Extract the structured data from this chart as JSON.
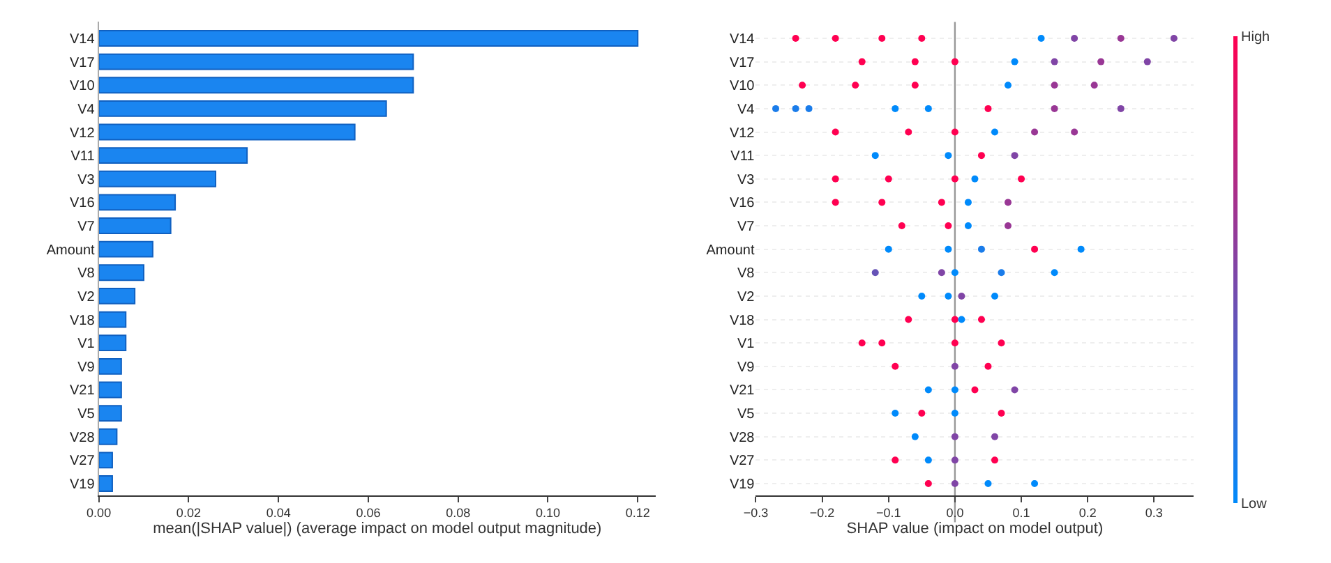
{
  "chart_data": [
    {
      "type": "bar",
      "orientation": "horizontal",
      "xlabel": "mean(|SHAP value|) (average impact on model output magnitude)",
      "categories": [
        "V14",
        "V17",
        "V10",
        "V4",
        "V12",
        "V11",
        "V3",
        "V16",
        "V7",
        "Amount",
        "V8",
        "V2",
        "V18",
        "V1",
        "V9",
        "V21",
        "V5",
        "V28",
        "V27",
        "V19"
      ],
      "values": [
        0.12,
        0.07,
        0.07,
        0.064,
        0.057,
        0.033,
        0.026,
        0.017,
        0.016,
        0.012,
        0.01,
        0.008,
        0.006,
        0.006,
        0.005,
        0.005,
        0.005,
        0.004,
        0.003,
        0.003
      ],
      "color": "#1a85f0",
      "xlim": [
        0,
        0.124
      ],
      "xticks": [
        {
          "value": 0,
          "label": "0.00"
        },
        {
          "value": 0.02,
          "label": "0.02"
        },
        {
          "value": 0.04,
          "label": "0.04"
        },
        {
          "value": 0.06,
          "label": "0.06"
        },
        {
          "value": 0.08,
          "label": "0.08"
        },
        {
          "value": 0.1,
          "label": "0.10"
        },
        {
          "value": 0.12,
          "label": "0.12"
        }
      ]
    },
    {
      "type": "scatter",
      "orientation": "horizontal",
      "xlabel": "SHAP value (impact on model output)",
      "categories": [
        "V14",
        "V17",
        "V10",
        "V4",
        "V12",
        "V11",
        "V3",
        "V16",
        "V7",
        "Amount",
        "V8",
        "V2",
        "V18",
        "V1",
        "V9",
        "V21",
        "V5",
        "V28",
        "V27",
        "V19"
      ],
      "series": [
        {
          "x": [
            "V14",
            "V14",
            "V14",
            "V14",
            "V14",
            "V14",
            "V14",
            "V14"
          ],
          "values": [
            -0.24,
            -0.18,
            -0.11,
            -0.05,
            0.13,
            0.18,
            0.25,
            0.33
          ],
          "colors": [
            "#ff0051",
            "#ff0051",
            "#ff0051",
            "#ff0051",
            "#008afb",
            "#8045a6",
            "#993795",
            "#8045a6"
          ]
        },
        {
          "x": [
            "V17",
            "V17",
            "V17",
            "V17",
            "V17",
            "V17",
            "V17"
          ],
          "values": [
            -0.14,
            -0.06,
            0.0,
            0.09,
            0.15,
            0.22,
            0.29
          ],
          "colors": [
            "#ff0051",
            "#ff0051",
            "#ff0051",
            "#008afb",
            "#8045a6",
            "#993795",
            "#8045a6"
          ]
        },
        {
          "x": [
            "V10",
            "V10",
            "V10",
            "V10",
            "V10",
            "V10"
          ],
          "values": [
            -0.23,
            -0.15,
            -0.06,
            0.08,
            0.15,
            0.21
          ],
          "colors": [
            "#ff0051",
            "#ff0051",
            "#ff0051",
            "#008afb",
            "#993795",
            "#993795"
          ]
        },
        {
          "x": [
            "V4",
            "V4",
            "V4",
            "V4",
            "V4",
            "V4",
            "V4",
            "V4"
          ],
          "values": [
            -0.27,
            -0.24,
            -0.22,
            -0.09,
            -0.04,
            0.05,
            0.15,
            0.25
          ],
          "colors": [
            "#1a7cea",
            "#1a7cea",
            "#1a7cea",
            "#008afb",
            "#008afb",
            "#ff0051",
            "#993795",
            "#8045a6"
          ]
        },
        {
          "x": [
            "V12",
            "V12",
            "V12",
            "V12",
            "V12",
            "V12"
          ],
          "values": [
            -0.18,
            -0.07,
            0.0,
            0.06,
            0.12,
            0.18
          ],
          "colors": [
            "#ff0051",
            "#ff0051",
            "#ff0051",
            "#008afb",
            "#993795",
            "#993795"
          ]
        },
        {
          "x": [
            "V11",
            "V11",
            "V11",
            "V11"
          ],
          "values": [
            -0.12,
            -0.01,
            0.04,
            0.09
          ],
          "colors": [
            "#008afb",
            "#008afb",
            "#ff0051",
            "#8045a6"
          ]
        },
        {
          "x": [
            "V3",
            "V3",
            "V3",
            "V3",
            "V3"
          ],
          "values": [
            -0.18,
            -0.1,
            0.0,
            0.03,
            0.1
          ],
          "colors": [
            "#ff0051",
            "#ff0051",
            "#ff0051",
            "#008afb",
            "#ff0051"
          ]
        },
        {
          "x": [
            "V16",
            "V16",
            "V16",
            "V16",
            "V16"
          ],
          "values": [
            -0.18,
            -0.11,
            -0.02,
            0.02,
            0.08
          ],
          "colors": [
            "#ff0051",
            "#ff0051",
            "#ff0051",
            "#008afb",
            "#993795"
          ]
        },
        {
          "x": [
            "V7",
            "V7",
            "V7",
            "V7"
          ],
          "values": [
            -0.08,
            -0.01,
            0.02,
            0.08
          ],
          "colors": [
            "#ff0051",
            "#ff0051",
            "#008afb",
            "#993795"
          ]
        },
        {
          "x": [
            "Amount",
            "Amount",
            "Amount",
            "Amount",
            "Amount"
          ],
          "values": [
            -0.1,
            -0.01,
            0.04,
            0.12,
            0.19
          ],
          "colors": [
            "#008afb",
            "#008afb",
            "#1a7cea",
            "#ff0051",
            "#008afb"
          ]
        },
        {
          "x": [
            "V8",
            "V8",
            "V8",
            "V8",
            "V8"
          ],
          "values": [
            -0.12,
            -0.02,
            0.0,
            0.07,
            0.15
          ],
          "colors": [
            "#6653b7",
            "#8045a6",
            "#008afb",
            "#1a7cea",
            "#008afb"
          ]
        },
        {
          "x": [
            "V2",
            "V2",
            "V2",
            "V2"
          ],
          "values": [
            -0.05,
            -0.01,
            0.01,
            0.06
          ],
          "colors": [
            "#008afb",
            "#008afb",
            "#8045a6",
            "#008afb"
          ]
        },
        {
          "x": [
            "V18",
            "V18",
            "V18",
            "V18"
          ],
          "values": [
            -0.07,
            0.0,
            0.01,
            0.04
          ],
          "colors": [
            "#ff0051",
            "#ff0051",
            "#008afb",
            "#ff0051"
          ]
        },
        {
          "x": [
            "V1",
            "V1",
            "V1",
            "V1"
          ],
          "values": [
            -0.14,
            -0.11,
            0.0,
            0.07
          ],
          "color": "#ff0051"
        },
        {
          "x": [
            "V9",
            "V9",
            "V9"
          ],
          "values": [
            -0.09,
            0.0,
            0.05
          ],
          "colors": [
            "#ff0051",
            "#8045a6",
            "#ff0051"
          ]
        },
        {
          "x": [
            "V21",
            "V21",
            "V21",
            "V21"
          ],
          "values": [
            -0.04,
            0.0,
            0.03,
            0.09
          ],
          "colors": [
            "#008afb",
            "#008afb",
            "#ff0051",
            "#8045a6"
          ]
        },
        {
          "x": [
            "V5",
            "V5",
            "V5",
            "V5"
          ],
          "values": [
            -0.09,
            -0.05,
            0.0,
            0.07
          ],
          "colors": [
            "#008afb",
            "#ff0051",
            "#008afb",
            "#ff0051"
          ]
        },
        {
          "x": [
            "V28",
            "V28",
            "V28"
          ],
          "values": [
            -0.06,
            0.0,
            0.06
          ],
          "colors": [
            "#008afb",
            "#8045a6",
            "#8045a6"
          ]
        },
        {
          "x": [
            "V27",
            "V27",
            "V27",
            "V27"
          ],
          "values": [
            -0.09,
            -0.04,
            0.0,
            0.06
          ],
          "colors": [
            "#ff0051",
            "#008afb",
            "#8045a6",
            "#ff0051"
          ]
        },
        {
          "x": [
            "V19",
            "V19",
            "V19",
            "V19"
          ],
          "values": [
            -0.04,
            0.0,
            0.05,
            0.12
          ],
          "colors": [
            "#ff0051",
            "#8045a6",
            "#008afb",
            "#008afb"
          ]
        }
      ],
      "grid": "y",
      "xlim": [
        -0.3,
        0.36
      ],
      "xticks": [
        {
          "value": -0.3,
          "label": "−0.3"
        },
        {
          "value": -0.2,
          "label": "−0.2"
        },
        {
          "value": -0.1,
          "label": "−0.1"
        },
        {
          "value": 0,
          "label": "0.0"
        },
        {
          "value": 0.1,
          "label": "0.1"
        },
        {
          "value": 0.2,
          "label": "0.2"
        },
        {
          "value": 0.3,
          "label": "0.3"
        }
      ],
      "annotations": [
        "High",
        "Low"
      ],
      "ref_lines": [
        {
          "axis": "x",
          "value": 0,
          "color": "#999999"
        }
      ]
    }
  ]
}
